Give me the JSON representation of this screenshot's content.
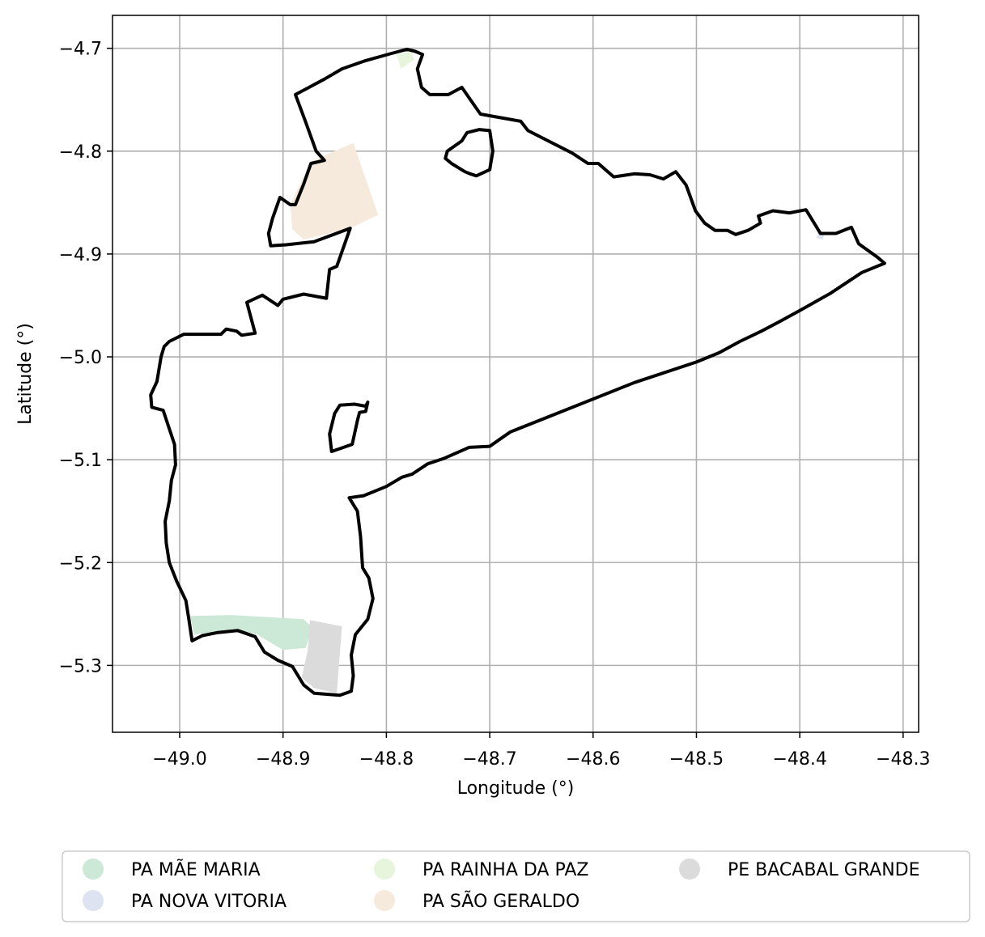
{
  "chart_data": {
    "type": "map",
    "title": "",
    "xlabel": "Longitude (°)",
    "ylabel": "Latitude (°)",
    "xlim": [
      -49.065,
      -48.285
    ],
    "ylim": [
      -5.365,
      -4.668
    ],
    "grid": true,
    "x_ticks": [
      -49.0,
      -48.9,
      -48.8,
      -48.7,
      -48.6,
      -48.5,
      -48.4,
      -48.3
    ],
    "y_ticks": [
      -4.7,
      -4.8,
      -4.9,
      -5.0,
      -5.1,
      -5.2,
      -5.3
    ],
    "x_tick_labels": [
      "−49.0",
      "−48.9",
      "−48.8",
      "−48.7",
      "−48.6",
      "−48.5",
      "−48.4",
      "−48.3"
    ],
    "y_tick_labels": [
      "−4.7",
      "−4.8",
      "−4.9",
      "−5.0",
      "−5.1",
      "−5.2",
      "−5.3"
    ],
    "legend_position": "bottom-center",
    "legend_columns": 3,
    "boundary_color": "#000000",
    "boundary_outer": [
      [
        -48.78,
        -4.701
      ],
      [
        -48.772,
        -4.703
      ],
      [
        -48.765,
        -4.706
      ],
      [
        -48.77,
        -4.72
      ],
      [
        -48.766,
        -4.738
      ],
      [
        -48.758,
        -4.745
      ],
      [
        -48.74,
        -4.745
      ],
      [
        -48.727,
        -4.738
      ],
      [
        -48.709,
        -4.764
      ],
      [
        -48.67,
        -4.771
      ],
      [
        -48.663,
        -4.78
      ],
      [
        -48.62,
        -4.802
      ],
      [
        -48.605,
        -4.812
      ],
      [
        -48.595,
        -4.812
      ],
      [
        -48.58,
        -4.825
      ],
      [
        -48.56,
        -4.822
      ],
      [
        -48.545,
        -4.823
      ],
      [
        -48.532,
        -4.827
      ],
      [
        -48.52,
        -4.82
      ],
      [
        -48.51,
        -4.833
      ],
      [
        -48.501,
        -4.858
      ],
      [
        -48.492,
        -4.87
      ],
      [
        -48.482,
        -4.877
      ],
      [
        -48.47,
        -4.877
      ],
      [
        -48.462,
        -4.881
      ],
      [
        -48.45,
        -4.877
      ],
      [
        -48.438,
        -4.87
      ],
      [
        -48.44,
        -4.863
      ],
      [
        -48.426,
        -4.858
      ],
      [
        -48.41,
        -4.86
      ],
      [
        -48.394,
        -4.857
      ],
      [
        -48.386,
        -4.87
      ],
      [
        -48.38,
        -4.88
      ],
      [
        -48.365,
        -4.88
      ],
      [
        -48.35,
        -4.874
      ],
      [
        -48.343,
        -4.89
      ],
      [
        -48.325,
        -4.903
      ],
      [
        -48.318,
        -4.909
      ],
      [
        -48.34,
        -4.918
      ],
      [
        -48.37,
        -4.938
      ],
      [
        -48.4,
        -4.955
      ],
      [
        -48.42,
        -4.966
      ],
      [
        -48.437,
        -4.975
      ],
      [
        -48.458,
        -4.985
      ],
      [
        -48.478,
        -4.996
      ],
      [
        -48.5,
        -5.005
      ],
      [
        -48.56,
        -5.025
      ],
      [
        -48.64,
        -5.057
      ],
      [
        -48.68,
        -5.073
      ],
      [
        -48.69,
        -5.08
      ],
      [
        -48.7,
        -5.087
      ],
      [
        -48.72,
        -5.088
      ],
      [
        -48.745,
        -5.099
      ],
      [
        -48.76,
        -5.104
      ],
      [
        -48.775,
        -5.114
      ],
      [
        -48.785,
        -5.117
      ],
      [
        -48.8,
        -5.126
      ],
      [
        -48.822,
        -5.135
      ],
      [
        -48.836,
        -5.137
      ],
      [
        -48.828,
        -5.15
      ],
      [
        -48.825,
        -5.175
      ],
      [
        -48.823,
        -5.205
      ],
      [
        -48.817,
        -5.215
      ],
      [
        -48.813,
        -5.235
      ],
      [
        -48.818,
        -5.255
      ],
      [
        -48.83,
        -5.27
      ],
      [
        -48.834,
        -5.29
      ],
      [
        -48.832,
        -5.31
      ],
      [
        -48.834,
        -5.325
      ],
      [
        -48.845,
        -5.329
      ],
      [
        -48.87,
        -5.327
      ],
      [
        -48.88,
        -5.319
      ],
      [
        -48.891,
        -5.301
      ],
      [
        -48.905,
        -5.295
      ],
      [
        -48.918,
        -5.287
      ],
      [
        -48.927,
        -5.272
      ],
      [
        -48.944,
        -5.266
      ],
      [
        -48.963,
        -5.268
      ],
      [
        -48.978,
        -5.271
      ],
      [
        -48.988,
        -5.276
      ],
      [
        -48.991,
        -5.256
      ],
      [
        -48.994,
        -5.237
      ],
      [
        -49.003,
        -5.218
      ],
      [
        -49.01,
        -5.2
      ],
      [
        -49.013,
        -5.181
      ],
      [
        -49.014,
        -5.16
      ],
      [
        -49.01,
        -5.14
      ],
      [
        -49.008,
        -5.12
      ],
      [
        -49.004,
        -5.105
      ],
      [
        -49.005,
        -5.085
      ],
      [
        -49.01,
        -5.07
      ],
      [
        -49.016,
        -5.052
      ],
      [
        -49.027,
        -5.049
      ],
      [
        -49.028,
        -5.037
      ],
      [
        -49.022,
        -5.024
      ],
      [
        -49.018,
        -5.0
      ],
      [
        -49.015,
        -4.99
      ],
      [
        -49.01,
        -4.985
      ],
      [
        -48.996,
        -4.978
      ],
      [
        -48.96,
        -4.978
      ],
      [
        -48.955,
        -4.973
      ],
      [
        -48.945,
        -4.975
      ],
      [
        -48.94,
        -4.979
      ],
      [
        -48.927,
        -4.977
      ],
      [
        -48.935,
        -4.947
      ],
      [
        -48.92,
        -4.94
      ],
      [
        -48.905,
        -4.95
      ],
      [
        -48.9,
        -4.944
      ],
      [
        -48.88,
        -4.939
      ],
      [
        -48.858,
        -4.943
      ],
      [
        -48.855,
        -4.915
      ],
      [
        -48.848,
        -4.912
      ],
      [
        -48.835,
        -4.875
      ],
      [
        -48.87,
        -4.888
      ],
      [
        -48.897,
        -4.891
      ],
      [
        -48.912,
        -4.892
      ],
      [
        -48.914,
        -4.88
      ],
      [
        -48.91,
        -4.865
      ],
      [
        -48.903,
        -4.845
      ],
      [
        -48.893,
        -4.852
      ],
      [
        -48.888,
        -4.852
      ],
      [
        -48.88,
        -4.832
      ],
      [
        -48.873,
        -4.812
      ],
      [
        -48.86,
        -4.809
      ],
      [
        -48.868,
        -4.8
      ],
      [
        -48.878,
        -4.772
      ],
      [
        -48.888,
        -4.745
      ],
      [
        -48.86,
        -4.73
      ],
      [
        -48.843,
        -4.72
      ],
      [
        -48.82,
        -4.712
      ],
      [
        -48.795,
        -4.705
      ],
      [
        -48.78,
        -4.701
      ]
    ],
    "boundary_inner": [
      [
        -48.71,
        -4.779
      ],
      [
        -48.7,
        -4.78
      ],
      [
        -48.697,
        -4.8
      ],
      [
        -48.7,
        -4.818
      ],
      [
        -48.713,
        -4.824
      ],
      [
        -48.719,
        -4.822
      ],
      [
        -48.724,
        -4.82
      ],
      [
        -48.737,
        -4.812
      ],
      [
        -48.743,
        -4.807
      ],
      [
        -48.741,
        -4.8
      ],
      [
        -48.727,
        -4.79
      ],
      [
        -48.722,
        -4.782
      ],
      [
        -48.71,
        -4.779
      ]
    ],
    "enclave": [
      [
        -48.831,
        -5.046
      ],
      [
        -48.82,
        -5.048
      ],
      [
        -48.818,
        -5.044
      ],
      [
        -48.82,
        -5.053
      ],
      [
        -48.826,
        -5.054
      ],
      [
        -48.828,
        -5.062
      ],
      [
        -48.833,
        -5.085
      ],
      [
        -48.853,
        -5.092
      ],
      [
        -48.855,
        -5.075
      ],
      [
        -48.85,
        -5.055
      ],
      [
        -48.845,
        -5.047
      ],
      [
        -48.831,
        -5.046
      ]
    ],
    "series": [
      {
        "name": "PA MÃE MARIA",
        "color": "#cce8d6",
        "polygon": [
          [
            -48.99,
            -5.252
          ],
          [
            -48.95,
            -5.251
          ],
          [
            -48.88,
            -5.255
          ],
          [
            -48.872,
            -5.263
          ],
          [
            -48.878,
            -5.283
          ],
          [
            -48.9,
            -5.285
          ],
          [
            -48.925,
            -5.27
          ],
          [
            -48.944,
            -5.265
          ],
          [
            -48.963,
            -5.267
          ],
          [
            -48.986,
            -5.27
          ]
        ]
      },
      {
        "name": "PA NOVA VITORIA",
        "color": "#dee3f2",
        "polygon": [
          [
            -48.381,
            -4.878
          ],
          [
            -48.376,
            -4.88
          ],
          [
            -48.378,
            -4.886
          ],
          [
            -48.384,
            -4.884
          ]
        ]
      },
      {
        "name": "PA RAINHA DA PAZ",
        "color": "#e6f5dc",
        "polygon": [
          [
            -48.79,
            -4.706
          ],
          [
            -48.776,
            -4.703
          ],
          [
            -48.773,
            -4.711
          ],
          [
            -48.786,
            -4.72
          ]
        ]
      },
      {
        "name": "PA SÃO GERALDO",
        "color": "#f5eadc",
        "polygon": [
          [
            -48.893,
            -4.852
          ],
          [
            -48.873,
            -4.81
          ],
          [
            -48.832,
            -4.792
          ],
          [
            -48.808,
            -4.862
          ],
          [
            -48.835,
            -4.875
          ],
          [
            -48.88,
            -4.886
          ],
          [
            -48.891,
            -4.876
          ]
        ]
      },
      {
        "name": "PE BACABAL GRANDE",
        "color": "#dbdbdb",
        "polygon": [
          [
            -48.874,
            -5.256
          ],
          [
            -48.843,
            -5.262
          ],
          [
            -48.848,
            -5.327
          ],
          [
            -48.87,
            -5.322
          ],
          [
            -48.882,
            -5.312
          ],
          [
            -48.876,
            -5.285
          ]
        ]
      }
    ]
  }
}
